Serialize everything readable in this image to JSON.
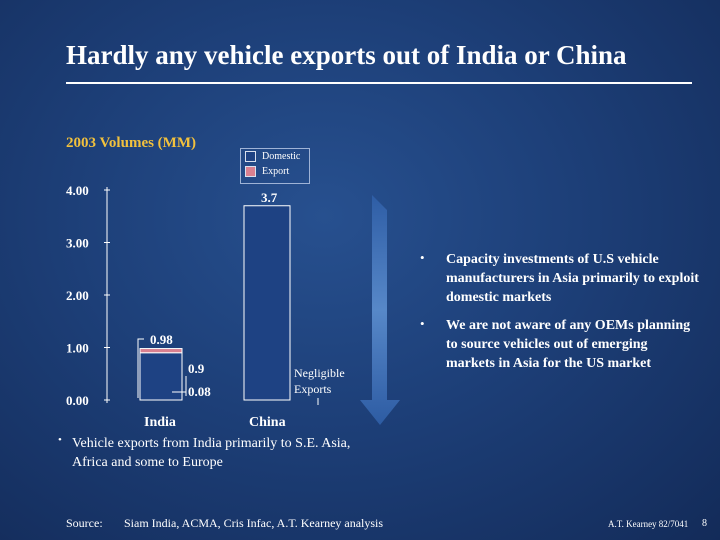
{
  "title": "Hardly any vehicle exports out of India or China",
  "legend": {
    "domestic": "Domestic",
    "export": "Export"
  },
  "colors": {
    "domestic": "#1e4283",
    "export": "#d98090",
    "title_accent": "#f2c13d"
  },
  "chart_data": {
    "type": "bar",
    "title": "2003 Volumes (MM)",
    "categories": [
      "India",
      "China"
    ],
    "series": [
      {
        "name": "Domestic",
        "values": [
          0.9,
          3.7
        ]
      },
      {
        "name": "Export",
        "values": [
          0.08,
          null
        ]
      }
    ],
    "totals": [
      0.98,
      3.7
    ],
    "labels": {
      "india_total": "0.98",
      "india_domestic": "0.9",
      "india_export": "0.08",
      "china_total": "3.7",
      "china_export_note": "Negligible Exports"
    },
    "yticks": [
      "4.00",
      "3.00",
      "2.00",
      "1.00",
      "0.00"
    ],
    "ylim": [
      0,
      4
    ],
    "xlabel": "",
    "ylabel": ""
  },
  "bullets": [
    "Capacity investments of U.S vehicle manufacturers in Asia primarily to exploit domestic markets",
    "We are not aware of any OEMs planning to source vehicles out of emerging markets in Asia for the US market"
  ],
  "note": "Vehicle exports from India primarily to S.E. Asia, Africa and some to Europe",
  "source_label": "Source:",
  "source_text": "Siam India, ACMA, Cris Infac, A.T. Kearney analysis",
  "footer_code": "A.T. Kearney 82/7041",
  "page_number": "8"
}
